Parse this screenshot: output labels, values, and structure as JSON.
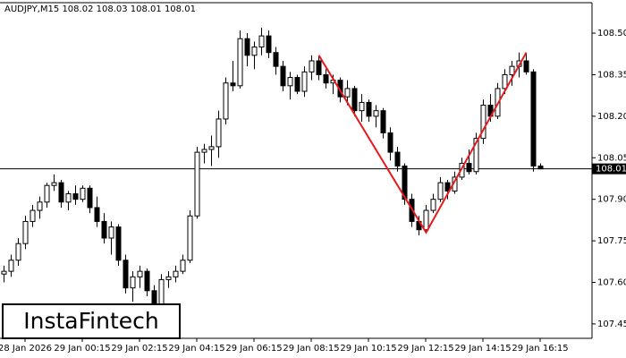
{
  "chart_data": {
    "type": "candlestick",
    "title": "AUDJPY,M15  108.02 108.03 108.01 108.01",
    "categories": [
      null,
      null,
      null,
      "28 Jan 2026",
      null,
      null,
      null,
      null,
      null,
      null,
      null,
      "29 Jan 00:15",
      null,
      null,
      null,
      null,
      null,
      null,
      null,
      "29 Jan 02:15",
      null,
      null,
      null,
      null,
      null,
      null,
      null,
      "29 Jan 04:15",
      null,
      null,
      null,
      null,
      null,
      null,
      null,
      "29 Jan 06:15",
      null,
      null,
      null,
      null,
      null,
      null,
      null,
      "29 Jan 08:15",
      null,
      null,
      null,
      null,
      null,
      null,
      null,
      "29 Jan 10:15",
      null,
      null,
      null,
      null,
      null,
      null,
      null,
      "29 Jan 12:15",
      null,
      null,
      null,
      null,
      null,
      null,
      null,
      "29 Jan 14:15",
      null,
      null,
      null,
      null,
      null,
      null,
      null,
      "29 Jan 16:15"
    ],
    "open": [
      107.63,
      107.64,
      107.68,
      107.74,
      107.82,
      107.86,
      107.89,
      107.95,
      107.96,
      107.89,
      107.92,
      107.9,
      107.94,
      107.87,
      107.82,
      107.76,
      107.8,
      107.68,
      107.58,
      107.62,
      107.64,
      107.57,
      107.5,
      107.61,
      107.62,
      107.64,
      107.68,
      107.84,
      108.07,
      108.08,
      108.09,
      108.19,
      108.32,
      108.31,
      108.48,
      108.42,
      108.45,
      108.49,
      108.43,
      108.38,
      108.31,
      108.34,
      108.29,
      108.36,
      108.4,
      108.35,
      108.32,
      108.33,
      108.27,
      108.3,
      108.22,
      108.25,
      108.2,
      108.22,
      108.14,
      108.07,
      108.02,
      107.9,
      107.82,
      107.79,
      107.86,
      107.9,
      107.96,
      107.93,
      107.98,
      108.03,
      108.0,
      108.12,
      108.24,
      108.2,
      108.3,
      108.35,
      108.38,
      108.4,
      108.36,
      108.02
    ],
    "high": [
      107.66,
      107.7,
      107.76,
      107.84,
      107.88,
      107.91,
      107.96,
      107.99,
      107.97,
      107.93,
      107.95,
      107.95,
      107.95,
      107.91,
      107.85,
      107.82,
      107.81,
      107.7,
      107.64,
      107.66,
      107.65,
      107.59,
      107.63,
      107.64,
      107.66,
      107.7,
      107.86,
      108.09,
      108.1,
      108.13,
      108.22,
      108.34,
      108.4,
      108.51,
      108.5,
      108.47,
      108.52,
      108.51,
      108.45,
      108.4,
      108.36,
      108.35,
      108.38,
      108.42,
      108.42,
      108.37,
      108.35,
      108.34,
      108.33,
      108.31,
      108.28,
      108.26,
      108.24,
      108.23,
      108.16,
      108.09,
      108.03,
      107.92,
      107.84,
      107.88,
      107.92,
      107.98,
      107.97,
      108.0,
      108.05,
      108.08,
      108.14,
      108.26,
      108.28,
      108.32,
      108.37,
      108.4,
      108.43,
      108.43,
      108.37,
      108.03
    ],
    "low": [
      107.6,
      107.62,
      107.66,
      107.72,
      107.8,
      107.83,
      107.87,
      107.93,
      107.87,
      107.86,
      107.88,
      107.89,
      107.85,
      107.8,
      107.74,
      107.7,
      107.66,
      107.56,
      107.53,
      107.58,
      107.55,
      107.47,
      107.49,
      107.58,
      107.6,
      107.63,
      107.67,
      107.83,
      108.03,
      108.02,
      108.05,
      108.17,
      108.29,
      108.3,
      108.38,
      108.37,
      108.42,
      108.41,
      108.35,
      108.29,
      108.26,
      108.28,
      108.27,
      108.33,
      108.33,
      108.3,
      108.28,
      108.25,
      108.24,
      108.2,
      108.18,
      108.18,
      108.16,
      108.12,
      108.04,
      108.0,
      107.88,
      107.8,
      107.77,
      107.78,
      107.85,
      107.89,
      107.9,
      107.92,
      107.97,
      107.99,
      107.99,
      108.1,
      108.18,
      108.19,
      108.28,
      108.31,
      108.34,
      108.35,
      108.0,
      108.01
    ],
    "close": [
      107.64,
      107.68,
      107.74,
      107.82,
      107.86,
      107.89,
      107.95,
      107.96,
      107.89,
      107.92,
      107.9,
      107.94,
      107.87,
      107.82,
      107.76,
      107.8,
      107.68,
      107.58,
      107.62,
      107.64,
      107.57,
      107.5,
      107.61,
      107.62,
      107.64,
      107.68,
      107.84,
      108.07,
      108.08,
      108.09,
      108.19,
      108.32,
      108.31,
      108.48,
      108.42,
      108.45,
      108.49,
      108.43,
      108.38,
      108.31,
      108.34,
      108.29,
      108.36,
      108.4,
      108.35,
      108.32,
      108.33,
      108.27,
      108.3,
      108.22,
      108.25,
      108.2,
      108.22,
      108.14,
      108.07,
      108.02,
      107.9,
      107.82,
      107.79,
      107.86,
      107.9,
      107.96,
      107.93,
      107.98,
      108.03,
      108.0,
      108.12,
      108.24,
      108.2,
      108.3,
      108.35,
      108.38,
      108.4,
      108.36,
      108.02,
      108.01
    ],
    "ylim": [
      107.398,
      108.61
    ],
    "yticks": [
      {
        "value": 108.5,
        "label": "108.50"
      },
      108.35,
      {
        "value": 108.2,
        "label": "108.20"
      },
      108.05,
      {
        "value": 107.9,
        "label": "107.90"
      },
      107.75,
      {
        "value": 107.6,
        "label": "107.60"
      },
      107.45
    ],
    "last_price": {
      "value": 108.01,
      "label": "108.01"
    },
    "pattern_line": {
      "color": "#e8191c",
      "x": [
        44,
        59,
        73
      ],
      "y": [
        108.42,
        107.78,
        108.43
      ]
    },
    "logo": "InstaFintech"
  }
}
